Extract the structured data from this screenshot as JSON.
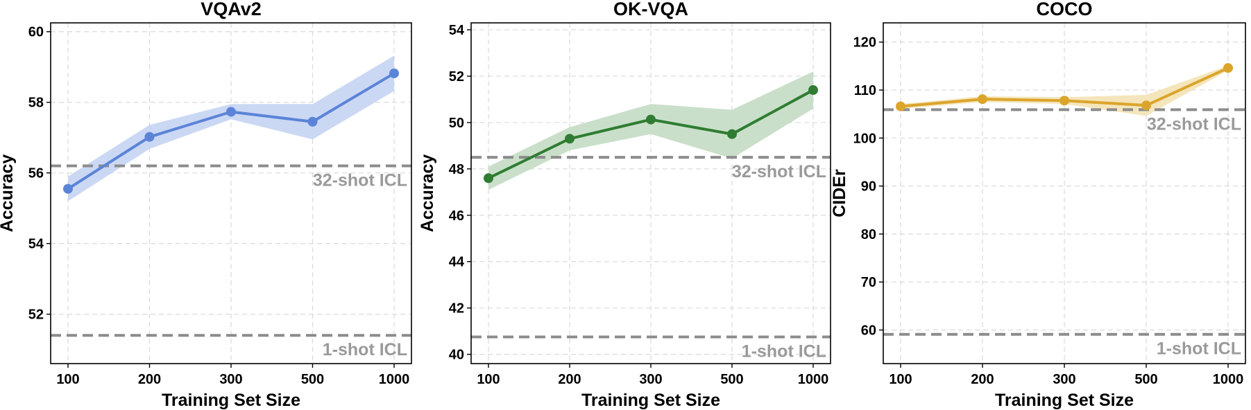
{
  "chart_data": [
    {
      "type": "line",
      "title": "VQAv2",
      "xlabel": "Training Set Size",
      "ylabel": "Accuracy",
      "categories": [
        "100",
        "200",
        "300",
        "500",
        "1000"
      ],
      "ylim": [
        50.6,
        60.25
      ],
      "yticks": [
        52,
        54,
        56,
        58,
        60
      ],
      "grid": true,
      "series": [
        {
          "values": [
            55.55,
            57.02,
            57.73,
            57.45,
            58.82
          ],
          "band_lower": [
            55.2,
            56.68,
            57.52,
            56.95,
            58.32
          ],
          "band_upper": [
            55.9,
            57.36,
            57.95,
            57.95,
            59.32
          ],
          "color": "#5b84d8",
          "band_color": "#c5d4f3"
        }
      ],
      "reference_lines": [
        {
          "label": "32-shot ICL",
          "value": 56.2
        },
        {
          "label": "1-shot ICL",
          "value": 51.4
        }
      ]
    },
    {
      "type": "line",
      "title": "OK-VQA",
      "xlabel": "Training Set Size",
      "ylabel": "Accuracy",
      "categories": [
        "100",
        "200",
        "300",
        "500",
        "1000"
      ],
      "ylim": [
        39.6,
        54.3
      ],
      "yticks": [
        40,
        42,
        44,
        46,
        48,
        50,
        52,
        54
      ],
      "grid": true,
      "series": [
        {
          "values": [
            47.6,
            49.3,
            50.13,
            49.5,
            51.4
          ],
          "band_lower": [
            47.1,
            48.8,
            49.5,
            48.45,
            50.6
          ],
          "band_upper": [
            48.1,
            49.8,
            50.8,
            50.55,
            52.2
          ],
          "color": "#2f7d32",
          "band_color": "#c4dcc4"
        }
      ],
      "reference_lines": [
        {
          "label": "32-shot ICL",
          "value": 48.5
        },
        {
          "label": "1-shot ICL",
          "value": 40.75
        }
      ]
    },
    {
      "type": "line",
      "title": "COCO",
      "xlabel": "Training Set Size",
      "ylabel": "CIDEr",
      "categories": [
        "100",
        "200",
        "300",
        "500",
        "1000"
      ],
      "ylim": [
        53.0,
        124.0
      ],
      "yticks": [
        60,
        70,
        80,
        90,
        100,
        110,
        120
      ],
      "grid": true,
      "series": [
        {
          "values": [
            106.6,
            108.1,
            107.8,
            106.8,
            114.6
          ],
          "band_lower": [
            106.1,
            107.5,
            107.1,
            104.6,
            114.1
          ],
          "band_upper": [
            107.1,
            108.7,
            108.5,
            109.0,
            115.1
          ],
          "color": "#dba52c",
          "band_color": "#f4e2b4"
        }
      ],
      "reference_lines": [
        {
          "label": "32-shot ICL",
          "value": 105.9
        },
        {
          "label": "1-shot ICL",
          "value": 59.1
        }
      ]
    }
  ]
}
